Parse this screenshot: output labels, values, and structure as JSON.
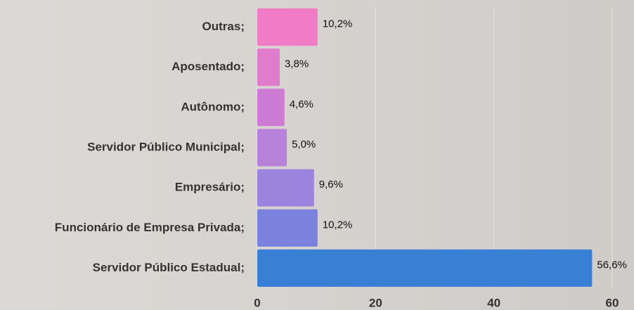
{
  "chart_data": {
    "type": "bar",
    "orientation": "horizontal",
    "categories": [
      "Outras;",
      "Aposentado;",
      "Autônomo;",
      "Servidor Público Municipal;",
      "Empresário;",
      "Funcionário de Empresa Privada;",
      "Servidor Público Estadual;"
    ],
    "values": [
      10.2,
      3.8,
      4.6,
      5.0,
      9.6,
      10.2,
      56.6
    ],
    "value_labels": [
      "10,2%",
      "3,8%",
      "4,6%",
      "5,0%",
      "9,6%",
      "10,2%",
      "56,6%"
    ],
    "colors": [
      "#f07cc6",
      "#e17ccd",
      "#cd7bd4",
      "#b882da",
      "#9c84de",
      "#7a82de",
      "#3a7fd6"
    ],
    "xlim": [
      0,
      60
    ],
    "xticks": [
      0,
      20,
      40,
      60
    ],
    "grid": true
  }
}
